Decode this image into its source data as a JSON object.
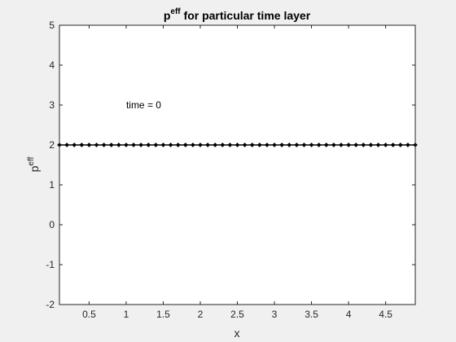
{
  "figure": {
    "background": "#f0f0f0",
    "axes_background": "#ffffff",
    "axis_color": "#262626",
    "line_color": "#000000"
  },
  "chart_data": {
    "type": "line",
    "title": {
      "base": "p",
      "superscript": "eff",
      "rest": " for particular time layer"
    },
    "xlabel": "x",
    "ylabel": {
      "base": "p",
      "superscript": "eff"
    },
    "xlim": [
      0.1,
      4.9
    ],
    "ylim": [
      -2,
      5
    ],
    "xticks": [
      0.5,
      1,
      1.5,
      2,
      2.5,
      3,
      3.5,
      4,
      4.5
    ],
    "xtick_labels": [
      "0.5",
      "1",
      "1.5",
      "2",
      "2.5",
      "3",
      "3.5",
      "4",
      "4.5"
    ],
    "yticks": [
      -2,
      -1,
      0,
      1,
      2,
      3,
      4,
      5
    ],
    "ytick_labels": [
      "-2",
      "-1",
      "0",
      "1",
      "2",
      "3",
      "4",
      "5"
    ],
    "grid": false,
    "marker": "diamond",
    "annotation": {
      "text": "time = 0",
      "x": 1.0,
      "y": 3
    },
    "series": [
      {
        "x": [
          0.1,
          0.2,
          0.3,
          0.4,
          0.5,
          0.6,
          0.7,
          0.8,
          0.9,
          1.0,
          1.1,
          1.2,
          1.3,
          1.4,
          1.5,
          1.6,
          1.7,
          1.8,
          1.9,
          2.0,
          2.1,
          2.2,
          2.3,
          2.4,
          2.5,
          2.6,
          2.7,
          2.8,
          2.9,
          3.0,
          3.1,
          3.2,
          3.3,
          3.4,
          3.5,
          3.6,
          3.7,
          3.8,
          3.9,
          4.0,
          4.1,
          4.2,
          4.3,
          4.4,
          4.5,
          4.6,
          4.7,
          4.8,
          4.9
        ],
        "y": [
          2,
          2,
          2,
          2,
          2,
          2,
          2,
          2,
          2,
          2,
          2,
          2,
          2,
          2,
          2,
          2,
          2,
          2,
          2,
          2,
          2,
          2,
          2,
          2,
          2,
          2,
          2,
          2,
          2,
          2,
          2,
          2,
          2,
          2,
          2,
          2,
          2,
          2,
          2,
          2,
          2,
          2,
          2,
          2,
          2,
          2,
          2,
          2,
          2
        ]
      }
    ]
  }
}
